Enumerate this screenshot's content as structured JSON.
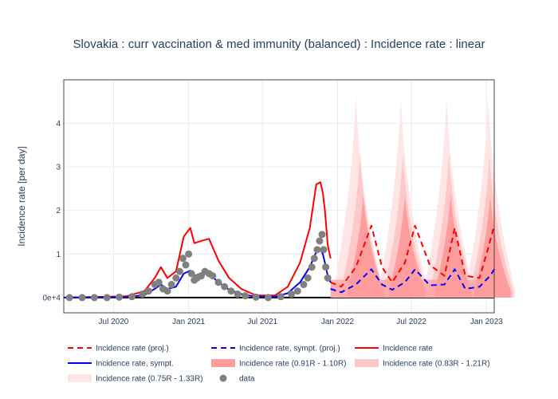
{
  "chart_data": {
    "type": "line",
    "title": "Slovakia : curr vaccination & med immunity (balanced) : Incidence rate : linear",
    "ylabel": "Incidence rate [per day]",
    "xlabel": "",
    "x_tick_labels": [
      "Jul 2020",
      "Jan 2021",
      "Jul 2021",
      "Jan 2022",
      "Jul 2022",
      "Jan 2023"
    ],
    "x_tick_dates": [
      "2020-07-01",
      "2021-01-01",
      "2021-07-01",
      "2022-01-01",
      "2022-07-01",
      "2023-01-01"
    ],
    "x_range": [
      "2020-03-01",
      "2023-01-20"
    ],
    "y_tick_labels": [
      "0e+4",
      "1",
      "2",
      "3",
      "4"
    ],
    "y_tick_values": [
      0,
      1,
      2,
      3,
      4
    ],
    "ylim": [
      -0.35,
      5.0
    ],
    "grid": true,
    "legend_position": "bottom",
    "colors": {
      "proj": "#ff0000",
      "sympt": "#0000ff",
      "band_inner": "#ff9d9d",
      "band_mid": "#ffc8c8",
      "band_outer": "#ffe6e6",
      "data": "#808080",
      "zero_line": "#000000",
      "grid": "#e5ecf6"
    },
    "series": [
      {
        "name": "Incidence rate (proj.)",
        "style": "dashed",
        "color": "#ff0000",
        "x": [
          "2021-12-15",
          "2022-01-10",
          "2022-02-15",
          "2022-03-25",
          "2022-04-20",
          "2022-05-15",
          "2022-06-15",
          "2022-07-10",
          "2022-08-15",
          "2022-09-20",
          "2022-10-15",
          "2022-11-10",
          "2022-12-15",
          "2023-01-10",
          "2023-01-20"
        ],
        "y": [
          0.35,
          0.25,
          0.7,
          1.65,
          0.7,
          0.35,
          0.8,
          1.65,
          0.75,
          0.5,
          1.6,
          0.5,
          0.45,
          1.3,
          1.65
        ]
      },
      {
        "name": "Incidence rate, sympt. (proj.)",
        "style": "dashed",
        "color": "#0000ff",
        "x": [
          "2021-12-15",
          "2022-01-10",
          "2022-02-15",
          "2022-03-25",
          "2022-04-20",
          "2022-05-15",
          "2022-06-15",
          "2022-07-10",
          "2022-08-15",
          "2022-09-20",
          "2022-10-15",
          "2022-11-10",
          "2022-12-15",
          "2023-01-10",
          "2023-01-20"
        ],
        "y": [
          0.2,
          0.12,
          0.3,
          0.65,
          0.3,
          0.18,
          0.35,
          0.65,
          0.28,
          0.3,
          0.65,
          0.2,
          0.25,
          0.5,
          0.65
        ]
      },
      {
        "name": "Incidence rate",
        "style": "solid",
        "color": "#ff0000",
        "x": [
          "2020-03-01",
          "2020-08-01",
          "2020-09-15",
          "2020-10-10",
          "2020-10-25",
          "2020-11-10",
          "2020-12-01",
          "2020-12-20",
          "2021-01-05",
          "2021-01-15",
          "2021-02-01",
          "2021-02-20",
          "2021-03-15",
          "2021-04-10",
          "2021-05-10",
          "2021-06-15",
          "2021-08-01",
          "2021-09-01",
          "2021-10-01",
          "2021-10-25",
          "2021-11-10",
          "2021-11-20",
          "2021-11-26",
          "2021-12-01",
          "2021-12-08",
          "2021-12-15"
        ],
        "y": [
          0.0,
          0.03,
          0.15,
          0.45,
          0.7,
          0.45,
          0.6,
          1.4,
          1.6,
          1.25,
          1.3,
          1.35,
          0.85,
          0.45,
          0.2,
          0.05,
          0.05,
          0.25,
          0.8,
          1.6,
          2.6,
          2.65,
          2.4,
          2.0,
          1.2,
          0.9
        ]
      },
      {
        "name": "Incidence rate, sympt.",
        "style": "solid",
        "color": "#0000ff",
        "x": [
          "2020-03-01",
          "2020-08-01",
          "2020-09-15",
          "2020-10-10",
          "2020-10-25",
          "2020-11-10",
          "2020-12-01",
          "2020-12-20",
          "2021-01-05",
          "2021-01-15",
          "2021-02-01",
          "2021-02-20",
          "2021-03-15",
          "2021-04-10",
          "2021-05-10",
          "2021-06-15",
          "2021-08-01",
          "2021-09-01",
          "2021-10-01",
          "2021-10-25",
          "2021-11-10",
          "2021-11-20",
          "2021-11-26",
          "2021-12-01",
          "2021-12-08",
          "2021-12-15"
        ],
        "y": [
          0.0,
          0.01,
          0.06,
          0.2,
          0.3,
          0.2,
          0.25,
          0.55,
          0.62,
          0.5,
          0.55,
          0.55,
          0.35,
          0.18,
          0.08,
          0.02,
          0.02,
          0.1,
          0.35,
          0.7,
          1.05,
          1.1,
          1.0,
          0.8,
          0.5,
          0.35
        ]
      },
      {
        "name": "data",
        "style": "markers",
        "color": "#808080",
        "x": [
          "2020-03-15",
          "2020-04-15",
          "2020-05-15",
          "2020-06-15",
          "2020-07-15",
          "2020-08-15",
          "2020-09-10",
          "2020-09-25",
          "2020-10-10",
          "2020-10-20",
          "2020-10-30",
          "2020-11-10",
          "2020-11-20",
          "2020-12-01",
          "2020-12-10",
          "2020-12-18",
          "2020-12-25",
          "2021-01-01",
          "2021-01-08",
          "2021-01-15",
          "2021-01-22",
          "2021-02-01",
          "2021-02-10",
          "2021-02-20",
          "2021-03-01",
          "2021-03-15",
          "2021-03-30",
          "2021-04-15",
          "2021-05-01",
          "2021-05-20",
          "2021-06-15",
          "2021-07-15",
          "2021-08-15",
          "2021-09-10",
          "2021-09-25",
          "2021-10-10",
          "2021-10-20",
          "2021-10-30",
          "2021-11-05",
          "2021-11-12",
          "2021-11-18",
          "2021-11-24",
          "2021-11-28",
          "2021-12-03",
          "2021-12-08"
        ],
        "y": [
          0.0,
          0.0,
          0.0,
          0.0,
          0.01,
          0.02,
          0.08,
          0.15,
          0.3,
          0.35,
          0.2,
          0.15,
          0.3,
          0.45,
          0.6,
          0.9,
          0.75,
          1.0,
          0.55,
          0.4,
          0.45,
          0.5,
          0.6,
          0.55,
          0.5,
          0.35,
          0.25,
          0.15,
          0.08,
          0.04,
          0.01,
          0.0,
          0.02,
          0.08,
          0.15,
          0.3,
          0.45,
          0.7,
          0.9,
          1.1,
          1.3,
          1.45,
          1.1,
          0.7,
          0.45
        ]
      }
    ],
    "bands": [
      {
        "name": "Incidence rate (0.75R - 1.33R)",
        "color": "#ffe6e6",
        "peaks": [
          {
            "x": "2022-02-15",
            "y": 4.65
          },
          {
            "x": "2022-06-05",
            "y": 4.6
          },
          {
            "x": "2022-09-25",
            "y": 4.6
          },
          {
            "x": "2023-01-05",
            "y": 4.6
          }
        ]
      },
      {
        "name": "Incidence rate (0.83R - 1.21R)",
        "color": "#ffc8c8",
        "peaks": [
          {
            "x": "2022-02-25",
            "y": 3.3
          },
          {
            "x": "2022-06-10",
            "y": 3.3
          },
          {
            "x": "2022-10-01",
            "y": 3.3
          },
          {
            "x": "2023-01-08",
            "y": 3.3
          }
        ]
      },
      {
        "name": "Incidence rate (0.91R - 1.10R)",
        "color": "#ff9d9d",
        "peaks": [
          {
            "x": "2022-03-05",
            "y": 2.35
          },
          {
            "x": "2022-06-15",
            "y": 2.35
          },
          {
            "x": "2022-10-05",
            "y": 2.35
          },
          {
            "x": "2023-01-10",
            "y": 2.35
          }
        ]
      }
    ],
    "legend": [
      {
        "label": "Incidence rate (proj.)",
        "symbol": "dash-red"
      },
      {
        "label": "Incidence rate, sympt. (proj.)",
        "symbol": "dash-blue"
      },
      {
        "label": "Incidence rate",
        "symbol": "line-red"
      },
      {
        "label": "Incidence rate, sympt.",
        "symbol": "line-blue"
      },
      {
        "label": "Incidence rate (0.91R - 1.10R)",
        "symbol": "band-inner"
      },
      {
        "label": "Incidence rate (0.83R - 1.21R)",
        "symbol": "band-mid"
      },
      {
        "label": "Incidence rate (0.75R - 1.33R)",
        "symbol": "band-outer"
      },
      {
        "label": "data",
        "symbol": "marker-gray"
      }
    ]
  }
}
